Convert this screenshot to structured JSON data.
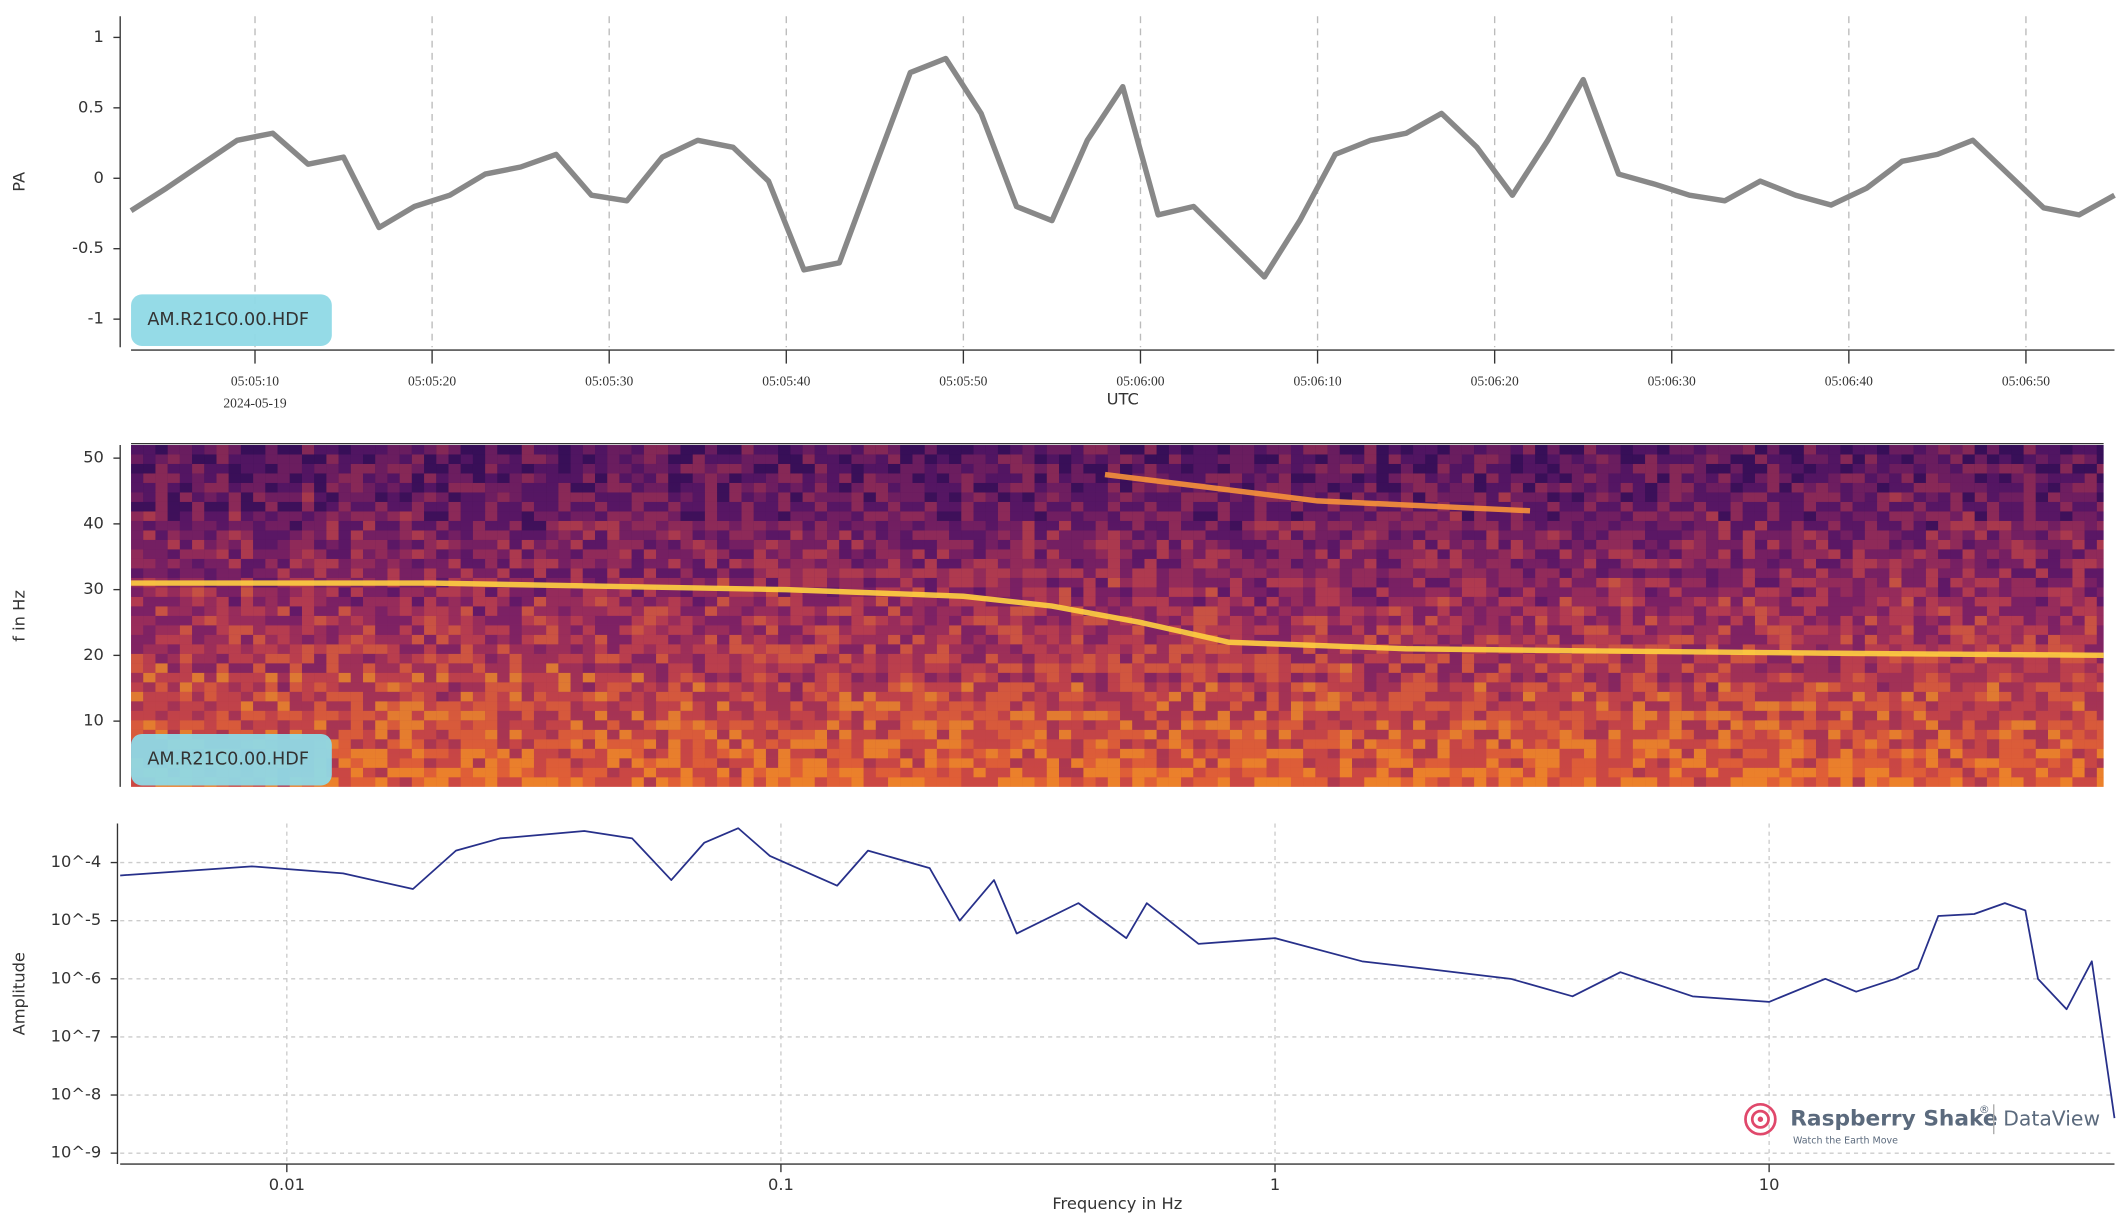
{
  "chart_data": [
    {
      "type": "line",
      "ylabel": "PA",
      "xlabel": "UTC",
      "annotation": "AM.R21C0.00.HDF",
      "x": [
        "05:05:03",
        "05:05:05",
        "05:05:07",
        "05:05:09",
        "05:05:11",
        "05:05:13",
        "05:05:15",
        "05:05:17",
        "05:05:19",
        "05:05:21",
        "05:05:23",
        "05:05:25",
        "05:05:27",
        "05:05:29",
        "05:05:31",
        "05:05:33",
        "05:05:35",
        "05:05:37",
        "05:05:39",
        "05:05:41",
        "05:05:43",
        "05:05:45",
        "05:05:47",
        "05:05:49",
        "05:05:51",
        "05:05:53",
        "05:05:55",
        "05:05:57",
        "05:05:59",
        "05:06:01",
        "05:06:03",
        "05:06:05",
        "05:06:07",
        "05:06:09",
        "05:06:11",
        "05:06:13",
        "05:06:15",
        "05:06:17",
        "05:06:19",
        "05:06:21",
        "05:06:23",
        "05:06:25",
        "05:06:27",
        "05:06:29",
        "05:06:31",
        "05:06:33",
        "05:06:35",
        "05:06:37",
        "05:06:39",
        "05:06:41",
        "05:06:43",
        "05:06:45",
        "05:06:47",
        "05:06:49",
        "05:06:51",
        "05:06:53",
        "05:06:55"
      ],
      "series": [
        {
          "color": "#888888",
          "values": [
            -0.23,
            -0.07,
            0.1,
            0.27,
            0.32,
            0.1,
            0.15,
            -0.35,
            -0.2,
            -0.12,
            0.03,
            0.08,
            0.17,
            -0.12,
            -0.16,
            0.15,
            0.27,
            0.22,
            -0.02,
            -0.65,
            -0.6,
            0.08,
            0.75,
            0.85,
            0.46,
            -0.2,
            -0.3,
            0.27,
            0.65,
            -0.26,
            -0.2,
            -0.45,
            -0.7,
            -0.3,
            0.17,
            0.27,
            0.32,
            0.46,
            0.22,
            -0.12,
            0.27,
            0.7,
            0.03,
            -0.04,
            -0.12,
            -0.16,
            -0.02,
            -0.12,
            -0.19,
            -0.07,
            0.12,
            0.17,
            0.27,
            0.03,
            -0.21,
            -0.26,
            -0.12
          ]
        }
      ],
      "xlim": [
        "05:05:03",
        "05:06:55"
      ],
      "xticks": [
        "05:05:10",
        "05:05:20",
        "05:05:30",
        "05:05:40",
        "05:05:50",
        "05:06:00",
        "05:06:10",
        "05:06:20",
        "05:06:30",
        "05:06:40",
        "05:06:50"
      ],
      "xdate": "2024-05-19",
      "ylim": [
        -1.2,
        1.15
      ],
      "yticks": [
        -1,
        -0.5,
        0,
        0.5,
        1
      ],
      "grid": true
    },
    {
      "type": "spectrogram",
      "ylabel": "f in Hz",
      "annotation": "AM.R21C0.00.HDF",
      "xlim": [
        "05:05:03",
        "05:06:55"
      ],
      "series": [
        {
          "color": "#ffd040",
          "x": [
            "05:05:03",
            "05:05:20",
            "05:05:40",
            "05:05:50",
            "05:05:55",
            "05:06:00",
            "05:06:05",
            "05:06:15",
            "05:06:25",
            "05:06:40",
            "05:06:55"
          ],
          "values": [
            31,
            31,
            30,
            29,
            27.5,
            25,
            22,
            21,
            20.7,
            20.3,
            20
          ]
        },
        {
          "color": "#f7913a",
          "x": [
            "05:05:58",
            "05:06:10",
            "05:06:22"
          ],
          "values": [
            47.5,
            43.5,
            42
          ]
        }
      ],
      "ylim": [
        0,
        52
      ],
      "yticks": [
        10,
        20,
        30,
        40,
        50
      ]
    },
    {
      "type": "line",
      "xscale": "log",
      "yscale": "log",
      "xlabel": "Frequency in Hz",
      "ylabel": "Amplitude",
      "x": [
        0.0046,
        0.0085,
        0.013,
        0.018,
        0.022,
        0.027,
        0.04,
        0.05,
        0.06,
        0.07,
        0.082,
        0.095,
        0.13,
        0.15,
        0.2,
        0.23,
        0.27,
        0.3,
        0.4,
        0.5,
        0.55,
        0.7,
        1,
        1.5,
        2,
        3,
        4,
        5,
        7,
        10,
        13,
        15,
        18,
        20,
        22,
        26,
        30,
        33,
        35,
        40,
        45,
        50
      ],
      "series": [
        {
          "color": "#27308a",
          "values": [
            6e-05,
            8.6e-05,
            6.5e-05,
            3.5e-05,
            0.00016,
            0.00026,
            0.00035,
            0.00026,
            5e-05,
            0.00022,
            0.00039,
            0.00013,
            4e-05,
            0.00016,
            8e-05,
            1e-05,
            5e-05,
            6e-06,
            2e-05,
            5e-06,
            2e-05,
            4e-06,
            5e-06,
            2e-06,
            1.5e-06,
            1e-06,
            5e-07,
            1.3e-06,
            5e-07,
            4e-07,
            1e-06,
            6e-07,
            1e-06,
            1.5e-06,
            1.2e-05,
            1.3e-05,
            2e-05,
            1.5e-05,
            1e-06,
            3e-07,
            2e-06,
            4e-09
          ]
        }
      ],
      "xlim": [
        0.0046,
        50
      ],
      "xticks": [
        0.01,
        0.1,
        1,
        10
      ],
      "ylim": [
        6.5e-10,
        0.00047
      ],
      "yticks": [
        {
          "value": 1e-09,
          "label": "10^-9"
        },
        {
          "value": 1e-08,
          "label": "10^-8"
        },
        {
          "value": 1e-07,
          "label": "10^-7"
        },
        {
          "value": 1e-06,
          "label": "10^-6"
        },
        {
          "value": 1e-05,
          "label": "10^-5"
        },
        {
          "value": 0.0001,
          "label": "10^-4"
        }
      ],
      "grid": true
    }
  ],
  "branding": {
    "name": "Raspberry Shake",
    "trademark": "®",
    "product": "DataView",
    "tagline": "Watch the Earth Move"
  }
}
